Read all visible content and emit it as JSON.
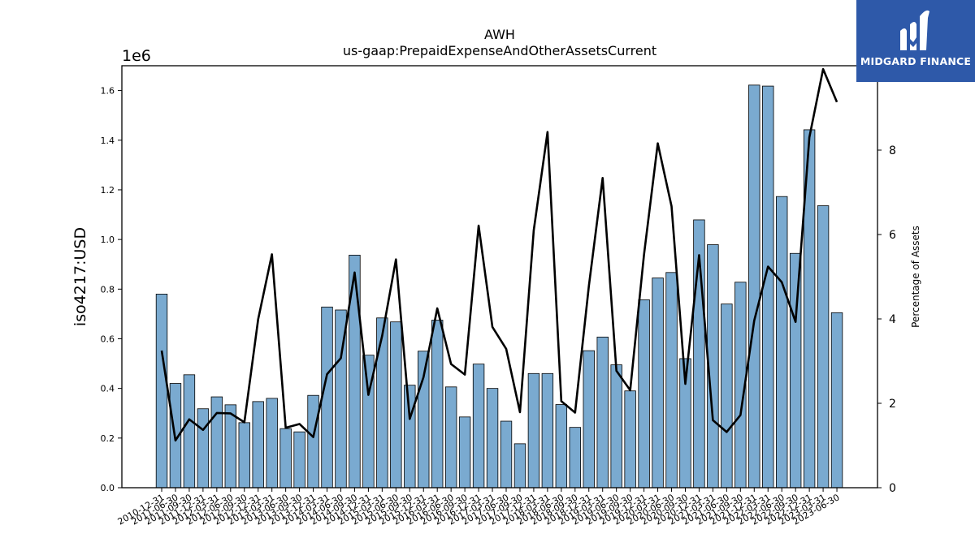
{
  "chart_data": {
    "type": "bar",
    "title": "AWH",
    "subtitle": "us-gaap:PrepaidExpenseAndOtherAssetsCurrent",
    "ylabel": "iso4217:USD",
    "y2label": "Percentage of Assets",
    "offset_label": "1e6",
    "ylim": [
      0,
      1700000
    ],
    "y2lim": [
      0,
      10
    ],
    "yticks": [
      "0.0",
      "0.2",
      "0.4",
      "0.6",
      "0.8",
      "1.0",
      "1.2",
      "1.4",
      "1.6"
    ],
    "y2ticks": [
      "0",
      "2",
      "4",
      "6",
      "8",
      "10"
    ],
    "bar_color": "#7aaad0",
    "line_color": "#000000",
    "categories": [
      "2010-12-31",
      "2011-06-30",
      "2011-09-30",
      "2011-12-31",
      "2012-03-31",
      "2012-06-30",
      "2012-09-30",
      "2012-12-31",
      "2013-03-31",
      "2013-06-30",
      "2013-09-30",
      "2013-12-31",
      "2014-03-31",
      "2014-06-30",
      "2014-09-30",
      "2014-12-31",
      "2015-03-31",
      "2015-06-30",
      "2015-09-30",
      "2015-12-31",
      "2016-03-31",
      "2016-06-30",
      "2016-09-30",
      "2016-12-31",
      "2017-03-31",
      "2017-06-30",
      "2017-09-30",
      "2017-12-31",
      "2018-03-31",
      "2018-06-30",
      "2018-09-30",
      "2018-12-31",
      "2019-03-31",
      "2019-06-30",
      "2019-09-30",
      "2019-12-31",
      "2020-03-31",
      "2020-06-30",
      "2020-09-30",
      "2020-12-31",
      "2021-03-31",
      "2021-06-30",
      "2021-09-30",
      "2021-12-31",
      "2022-03-31",
      "2022-06-30",
      "2022-09-30",
      "2022-12-31",
      "2023-03-31",
      "2023-06-30"
    ],
    "series": [
      {
        "kind": "bar",
        "values": [
          780000,
          420000,
          455000,
          318000,
          366000,
          334000,
          262000,
          347000,
          360000,
          238000,
          225000,
          372000,
          728000,
          716000,
          937000,
          534000,
          684000,
          668000,
          413000,
          550000,
          675000,
          406000,
          285000,
          498000,
          400000,
          268000,
          177000,
          460000,
          460000,
          335000,
          243000,
          552000,
          607000,
          495000,
          390000,
          757000,
          845000,
          867000,
          520000,
          1079000,
          979000,
          740000,
          828000,
          1622000,
          1618000,
          1173000,
          944000,
          1442000,
          1136000,
          705000
        ]
      },
      {
        "kind": "line",
        "values": [
          3.25,
          1.12,
          1.62,
          1.37,
          1.77,
          1.76,
          1.55,
          3.99,
          5.53,
          1.42,
          1.51,
          1.2,
          2.69,
          3.07,
          5.1,
          2.2,
          3.6,
          5.41,
          1.63,
          2.62,
          4.25,
          2.93,
          2.68,
          6.21,
          3.81,
          3.29,
          1.79,
          6.1,
          8.43,
          2.05,
          1.78,
          4.78,
          7.34,
          2.77,
          2.31,
          5.52,
          8.16,
          6.67,
          2.46,
          5.51,
          1.6,
          1.32,
          1.72,
          3.96,
          5.24,
          4.87,
          3.93,
          8.3,
          9.92,
          9.14
        ]
      }
    ]
  },
  "logo": {
    "text": "MIDGARD FINANCE",
    "bg": "#2e59a9"
  }
}
